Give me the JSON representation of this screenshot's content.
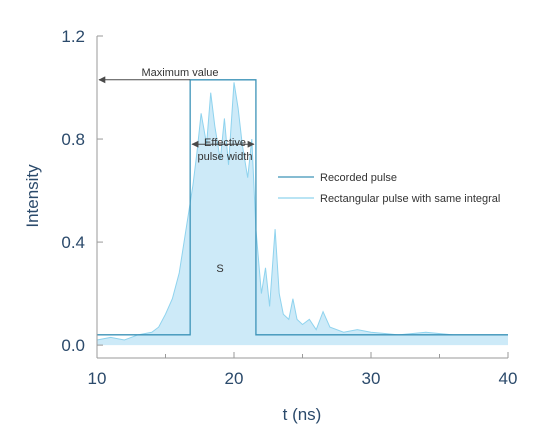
{
  "chart_data": {
    "type": "area",
    "xlabel": "t (ns)",
    "ylabel": "Intensity",
    "xlim": [
      10,
      40
    ],
    "ylim": [
      -0.05,
      1.2
    ],
    "x_ticks": [
      10,
      20,
      30,
      40
    ],
    "y_ticks": [
      0.0,
      0.4,
      0.8,
      1.2
    ],
    "x_tick_labels": [
      "10",
      "20",
      "30",
      "40"
    ],
    "y_tick_labels": [
      "0.0",
      "0.4",
      "0.8",
      "1.2"
    ],
    "series": [
      {
        "name": "Recorded pulse",
        "style": "filled-area",
        "x": [
          10,
          11,
          12,
          13,
          14,
          14.5,
          15,
          15.5,
          16,
          16.5,
          17,
          17.3,
          17.6,
          18,
          18.3,
          18.6,
          19,
          19.3,
          19.6,
          20,
          20.3,
          20.6,
          21,
          21.3,
          21.6,
          22,
          22.3,
          22.6,
          23,
          23.3,
          23.6,
          24,
          24.3,
          24.6,
          25,
          25.5,
          26,
          26.5,
          27,
          28,
          29,
          30,
          32,
          34,
          36,
          38,
          40
        ],
        "y": [
          0.02,
          0.03,
          0.02,
          0.04,
          0.05,
          0.07,
          0.12,
          0.18,
          0.28,
          0.45,
          0.62,
          0.75,
          0.9,
          0.78,
          0.98,
          0.85,
          0.72,
          0.88,
          0.7,
          1.02,
          0.92,
          0.78,
          0.65,
          0.8,
          0.45,
          0.2,
          0.3,
          0.15,
          0.45,
          0.2,
          0.12,
          0.1,
          0.18,
          0.1,
          0.08,
          0.1,
          0.06,
          0.13,
          0.07,
          0.05,
          0.06,
          0.05,
          0.04,
          0.05,
          0.04,
          0.04,
          0.04
        ]
      },
      {
        "name": "Rectangular pulse with same integral",
        "style": "step-line",
        "x": [
          10,
          16.8,
          16.8,
          21.6,
          21.6,
          40
        ],
        "y": [
          0.04,
          0.04,
          1.03,
          1.03,
          0.04,
          0.04
        ]
      }
    ],
    "annotations": {
      "max_label": "Maximum value",
      "max_value": 1.03,
      "width_label_line1": "Effective",
      "width_label_line2": "pulse width",
      "width_start": 16.8,
      "width_end": 21.6,
      "area_label": "S"
    },
    "legend": {
      "placement": "right",
      "entries": [
        "Recorded pulse",
        "Rectangular pulse with same integral"
      ]
    },
    "colors": {
      "fill": "#cdeaf8",
      "recorded_line": "#8fd3ee",
      "rect_line": "#3d93b8",
      "axis": "#9a9a9a",
      "text": "#2b4a6b",
      "annot_arrow": "#4a4a4a"
    }
  }
}
